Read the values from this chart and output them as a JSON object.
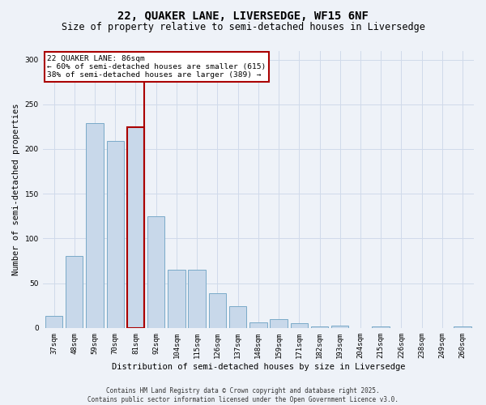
{
  "title_line1": "22, QUAKER LANE, LIVERSEDGE, WF15 6NF",
  "title_line2": "Size of property relative to semi-detached houses in Liversedge",
  "xlabel": "Distribution of semi-detached houses by size in Liversedge",
  "ylabel": "Number of semi-detached properties",
  "categories": [
    "37sqm",
    "48sqm",
    "59sqm",
    "70sqm",
    "81sqm",
    "92sqm",
    "104sqm",
    "115sqm",
    "126sqm",
    "137sqm",
    "148sqm",
    "159sqm",
    "171sqm",
    "182sqm",
    "193sqm",
    "204sqm",
    "215sqm",
    "226sqm",
    "238sqm",
    "249sqm",
    "260sqm"
  ],
  "values": [
    13,
    80,
    229,
    209,
    224,
    125,
    65,
    65,
    39,
    24,
    6,
    10,
    5,
    2,
    3,
    0,
    2,
    0,
    0,
    0,
    2
  ],
  "bar_color": "#c8d8ea",
  "bar_edge_color": "#7aaac8",
  "highlight_index": 4,
  "vline_color": "#aa0000",
  "annotation_text": "22 QUAKER LANE: 86sqm\n← 60% of semi-detached houses are smaller (615)\n38% of semi-detached houses are larger (389) →",
  "annotation_box_color": "#ffffff",
  "annotation_box_edge_color": "#aa0000",
  "ylim": [
    0,
    310
  ],
  "yticks": [
    0,
    50,
    100,
    150,
    200,
    250,
    300
  ],
  "grid_color": "#d0daea",
  "background_color": "#eef2f8",
  "footer_text": "Contains HM Land Registry data © Crown copyright and database right 2025.\nContains public sector information licensed under the Open Government Licence v3.0.",
  "title_fontsize": 10,
  "subtitle_fontsize": 8.5,
  "axis_label_fontsize": 7.5,
  "tick_fontsize": 6.5,
  "annotation_fontsize": 6.8,
  "footer_fontsize": 5.5
}
